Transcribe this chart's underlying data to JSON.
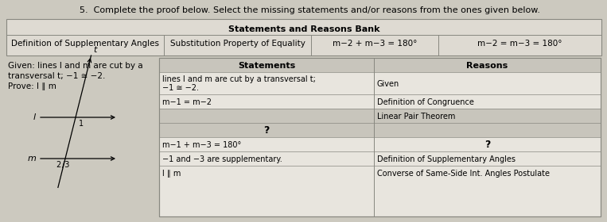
{
  "title": "5.  Complete the proof below. Select the missing statements and/or reasons from the ones given below.",
  "bank_header": "Statements and Reasons Bank",
  "bank_items": [
    "Definition of Supplementary Angles",
    "Substitution Property of Equality",
    "m−2 + m−3 = 180°",
    "m−2 = m−3 = 180°"
  ],
  "given_lines": [
    "Given: lines l and m are cut by a",
    "transversal t; −1 ≅ −2.",
    "Prove: l ∥ m"
  ],
  "proof_headers": [
    "Statements",
    "Reasons"
  ],
  "proof_rows": [
    [
      "lines l and m are cut by a transversal t;\n−1 ≅ −2.",
      "Given"
    ],
    [
      "m−1 = m−2",
      "Definition of Congruence"
    ],
    [
      "",
      "Linear Pair Theorem"
    ],
    [
      "?",
      ""
    ],
    [
      "m−1 + m−3 = 180°",
      "?"
    ],
    [
      "−1 and −3 are supplementary.",
      "Definition of Supplementary Angles"
    ],
    [
      "l ∥ m",
      "Converse of Same-Side Int. Angles Postulate"
    ]
  ],
  "bg_color": "#ccc9bf",
  "bank_bg": "#dedad2",
  "bank_header_bg": "#dedad2",
  "tbl_light": "#e8e5de",
  "tbl_dark": "#c8c5bc",
  "border_color": "#888880"
}
